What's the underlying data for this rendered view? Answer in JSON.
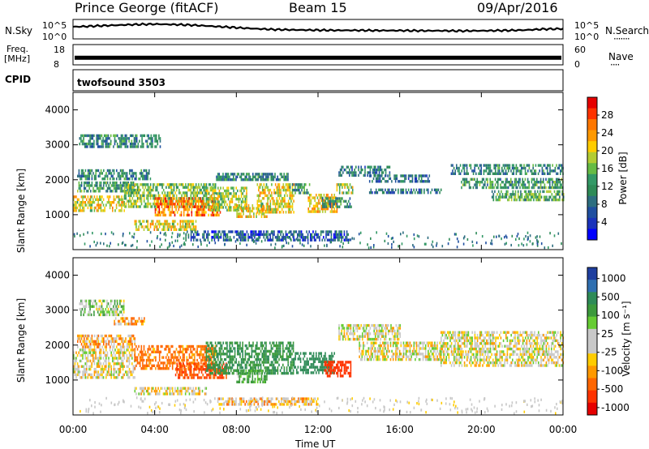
{
  "header": {
    "station": "Prince George (fitACF)",
    "beam": "Beam 15",
    "date": "09/Apr/2016"
  },
  "labels": {
    "nsky": "N.Sky",
    "nsearch": "N.Search",
    "nsearch_dots": "·······",
    "freq": "Freq.",
    "freq_unit": "[MHz]",
    "nave": "Nave",
    "nave_dots": "····",
    "cpid": "CPID",
    "cpid_value": "twofsound 3503"
  },
  "noise_axis": {
    "left_ticks": [
      "10^5",
      "10^0"
    ],
    "right_ticks": [
      "10^5",
      "10^0"
    ]
  },
  "freq_axis": {
    "left_ticks": [
      "18",
      "8"
    ],
    "right_ticks": [
      "60",
      "0"
    ]
  },
  "colorbars": {
    "power": {
      "label": "Power [dB]",
      "ticks": [
        "28",
        "24",
        "20",
        "16",
        "12",
        "8",
        "4"
      ],
      "colors": [
        "#e60000",
        "#ff3300",
        "#ff7700",
        "#ff9900",
        "#ffcc00",
        "#b3cc33",
        "#66bb44",
        "#339966",
        "#2e8b57",
        "#2d6e80",
        "#1f4fa0",
        "#1a33bb",
        "#0000ff"
      ]
    },
    "velocity": {
      "label": "Velocity [m s⁻¹]",
      "ticks": [
        "1000",
        "500",
        "100",
        "25",
        "-25",
        "-100",
        "-500",
        "-1000"
      ],
      "colors": [
        "#1f3f9f",
        "#2f6fb0",
        "#2e8b57",
        "#3c9a3c",
        "#66cc33",
        "#c8c8c8",
        "#c8c8c8",
        "#ffcc00",
        "#ff9900",
        "#ff6600",
        "#ff3300",
        "#e60000"
      ]
    }
  },
  "chart_data": [
    {
      "type": "heatmap",
      "name": "Power",
      "ylabel": "Slant Range [km]",
      "xlabel": "",
      "xlim": [
        0,
        24
      ],
      "ylim": [
        0,
        4500
      ],
      "yticks": [
        "1000",
        "2000",
        "3000",
        "4000"
      ],
      "xticks": [
        "00:00",
        "04:00",
        "08:00",
        "12:00",
        "16:00",
        "20:00",
        "00:00"
      ],
      "colorbar_range_db": [
        0,
        32
      ],
      "echo_regions": [
        {
          "t0": 0.3,
          "t1": 4.3,
          "r0": 2950,
          "r1": 3300,
          "value": 10
        },
        {
          "t0": 0.2,
          "t1": 3.8,
          "r0": 2050,
          "r1": 2300,
          "value": 10
        },
        {
          "t0": 0.2,
          "t1": 3.0,
          "r0": 1700,
          "r1": 1950,
          "value": 12
        },
        {
          "t0": 0.0,
          "t1": 2.5,
          "r0": 1100,
          "r1": 1550,
          "value": 20
        },
        {
          "t0": 2.5,
          "t1": 7.0,
          "r0": 1200,
          "r1": 1900,
          "value": 16
        },
        {
          "t0": 4.0,
          "t1": 7.2,
          "r0": 950,
          "r1": 1500,
          "value": 26
        },
        {
          "t0": 3.0,
          "t1": 6.0,
          "r0": 600,
          "r1": 850,
          "value": 20
        },
        {
          "t0": 6.5,
          "t1": 8.5,
          "r0": 1100,
          "r1": 1800,
          "value": 18
        },
        {
          "t0": 8.0,
          "t1": 9.5,
          "r0": 950,
          "r1": 1300,
          "value": 22
        },
        {
          "t0": 7.0,
          "t1": 10.5,
          "r0": 2000,
          "r1": 2200,
          "value": 10
        },
        {
          "t0": 9.0,
          "t1": 10.8,
          "r0": 1050,
          "r1": 1900,
          "value": 20
        },
        {
          "t0": 10.6,
          "t1": 11.6,
          "r0": 1600,
          "r1": 1900,
          "value": 12
        },
        {
          "t0": 11.5,
          "t1": 12.9,
          "r0": 1100,
          "r1": 1600,
          "value": 22
        },
        {
          "t0": 12.2,
          "t1": 13.6,
          "r0": 1250,
          "r1": 1500,
          "value": 10
        },
        {
          "t0": 12.9,
          "t1": 13.7,
          "r0": 1600,
          "r1": 1900,
          "value": 18
        },
        {
          "t0": 13.0,
          "t1": 15.5,
          "r0": 2100,
          "r1": 2400,
          "value": 9
        },
        {
          "t0": 14.5,
          "t1": 17.5,
          "r0": 1950,
          "r1": 2150,
          "value": 8
        },
        {
          "t0": 14.5,
          "t1": 18.0,
          "r0": 1600,
          "r1": 1750,
          "value": 8
        },
        {
          "t0": 18.5,
          "t1": 24.0,
          "r0": 2150,
          "r1": 2450,
          "value": 10
        },
        {
          "t0": 19.0,
          "t1": 24.0,
          "r0": 1800,
          "r1": 2050,
          "value": 12
        },
        {
          "t0": 20.5,
          "t1": 24.0,
          "r0": 1400,
          "r1": 1700,
          "value": 14
        },
        {
          "t0": 5.5,
          "t1": 13.5,
          "r0": 300,
          "r1": 550,
          "value": 6
        }
      ]
    },
    {
      "type": "heatmap",
      "name": "Velocity",
      "ylabel": "Slant Range [km]",
      "xlabel": "Time UT",
      "xlim": [
        0,
        24
      ],
      "ylim": [
        0,
        4500
      ],
      "yticks": [
        "1000",
        "2000",
        "3000",
        "4000"
      ],
      "xticks": [
        "00:00",
        "04:00",
        "08:00",
        "12:00",
        "16:00",
        "20:00",
        "00:00"
      ],
      "echo_regions": [
        {
          "t0": 0.3,
          "t1": 2.5,
          "r0": 2900,
          "r1": 3300,
          "value": 60
        },
        {
          "t0": 2.0,
          "t1": 3.5,
          "r0": 2600,
          "r1": 2800,
          "value": -80
        },
        {
          "t0": 0.2,
          "t1": 3.0,
          "r0": 1950,
          "r1": 2300,
          "value": -60
        },
        {
          "t0": 0.0,
          "t1": 3.0,
          "r0": 1100,
          "r1": 1900,
          "value": 0
        },
        {
          "t0": 3.0,
          "t1": 7.0,
          "r0": 1300,
          "r1": 2000,
          "value": -150
        },
        {
          "t0": 5.0,
          "t1": 7.5,
          "r0": 1100,
          "r1": 1500,
          "value": -300
        },
        {
          "t0": 6.5,
          "t1": 10.8,
          "r0": 1200,
          "r1": 2100,
          "value": 300
        },
        {
          "t0": 8.0,
          "t1": 9.5,
          "r0": 950,
          "r1": 1300,
          "value": 150
        },
        {
          "t0": 10.8,
          "t1": 12.8,
          "r0": 1200,
          "r1": 1800,
          "value": 400
        },
        {
          "t0": 12.3,
          "t1": 13.6,
          "r0": 1150,
          "r1": 1550,
          "value": -600
        },
        {
          "t0": 13.0,
          "t1": 16.0,
          "r0": 2200,
          "r1": 2600,
          "value": 0
        },
        {
          "t0": 14.0,
          "t1": 18.0,
          "r0": 1600,
          "r1": 2100,
          "value": 0
        },
        {
          "t0": 18.0,
          "t1": 24.0,
          "r0": 1400,
          "r1": 2400,
          "value": 0
        },
        {
          "t0": 3.0,
          "t1": 6.5,
          "r0": 600,
          "r1": 800,
          "value": 0
        },
        {
          "t0": 7.0,
          "t1": 12.0,
          "r0": 300,
          "r1": 500,
          "value": -50
        }
      ]
    }
  ],
  "noise_series": {
    "sky": [
      0.62,
      0.66,
      0.7,
      0.74,
      0.76,
      0.74,
      0.7,
      0.64,
      0.58,
      0.52,
      0.48,
      0.46,
      0.45,
      0.44,
      0.44,
      0.43,
      0.43,
      0.42,
      0.42,
      0.41,
      0.42,
      0.43,
      0.45,
      0.5,
      0.52
    ],
    "hour_step": 1
  },
  "freq_series": {
    "mhz_band": [
      10.5,
      12.5
    ]
  }
}
